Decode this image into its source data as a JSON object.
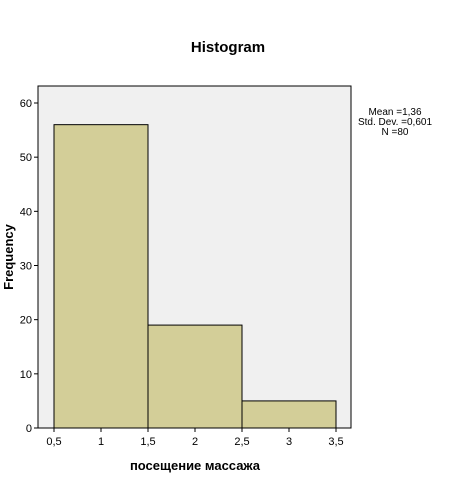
{
  "chart_data": {
    "type": "bar",
    "title": "Histogram",
    "xlabel": "посещение массажа",
    "ylabel": "Frequency",
    "bins": [
      {
        "from": 0.5,
        "to": 1.5,
        "value": 56
      },
      {
        "from": 1.5,
        "to": 2.5,
        "value": 19
      },
      {
        "from": 2.5,
        "to": 3.5,
        "value": 5
      }
    ],
    "xlim": [
      0.5,
      3.5
    ],
    "ylim": [
      0,
      60
    ],
    "xticks": [
      {
        "value": 0.5,
        "label": "0,5"
      },
      {
        "value": 1,
        "label": "1"
      },
      {
        "value": 1.5,
        "label": "1,5"
      },
      {
        "value": 2,
        "label": "2"
      },
      {
        "value": 2.5,
        "label": "2,5"
      },
      {
        "value": 3,
        "label": "3"
      },
      {
        "value": 3.5,
        "label": "3,5"
      }
    ],
    "yticks": [
      0,
      10,
      20,
      30,
      40,
      50,
      60
    ],
    "stats": [
      "Mean =1,36",
      "Std. Dev. =0,601",
      "N =80"
    ],
    "colors": {
      "bar_fill": "#d3ce98",
      "bar_stroke": "#000000",
      "plot_background": "#f0f0f0",
      "axis": "#000000"
    }
  }
}
